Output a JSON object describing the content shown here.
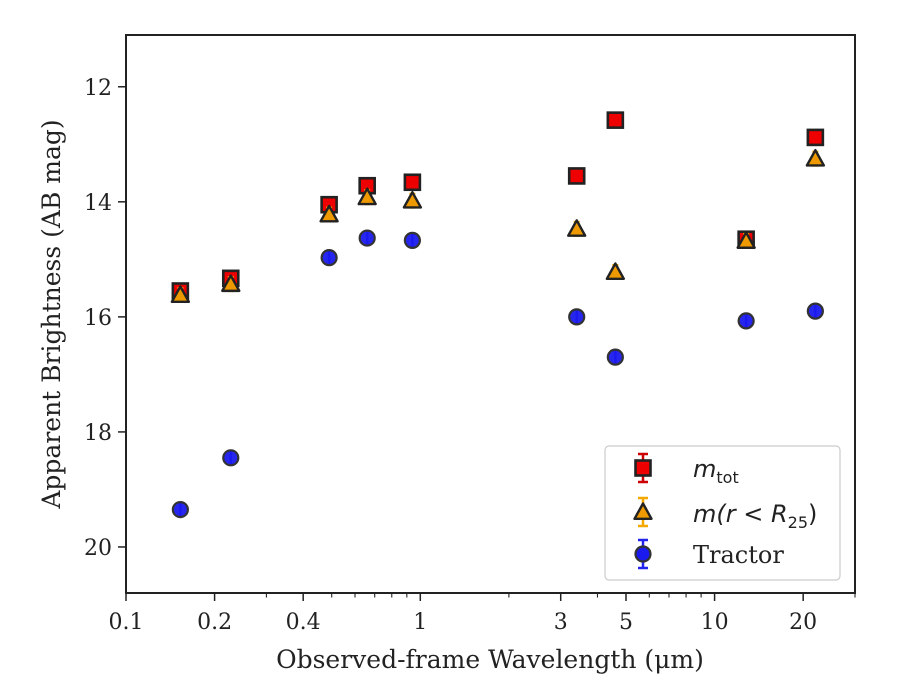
{
  "chart_data": {
    "type": "scatter",
    "xlabel": "Observed-frame Wavelength (μm)",
    "ylabel": "Apparent Brightness (AB mag)",
    "xscale": "log",
    "xlim": [
      0.1,
      30
    ],
    "ylim": [
      20.8,
      11.1
    ],
    "y_inverted": true,
    "xticks": [
      {
        "value": 0.1,
        "label": "0.1"
      },
      {
        "value": 0.2,
        "label": "0.2"
      },
      {
        "value": 0.4,
        "label": "0.4"
      },
      {
        "value": 1,
        "label": "1"
      },
      {
        "value": 3,
        "label": "3"
      },
      {
        "value": 5,
        "label": "5"
      },
      {
        "value": 10,
        "label": "10"
      },
      {
        "value": 20,
        "label": "20"
      }
    ],
    "yticks": [
      {
        "value": 12,
        "label": "12"
      },
      {
        "value": 14,
        "label": "14"
      },
      {
        "value": 16,
        "label": "16"
      },
      {
        "value": 18,
        "label": "18"
      },
      {
        "value": 20,
        "label": "20"
      }
    ],
    "grid": false,
    "legend_position": "lower-right",
    "legend": {
      "mtot_label": "m",
      "mtot_sub": "tot",
      "mr_label": "m(r < R",
      "mr_sub": "25",
      "mr_close": ")",
      "tractor_label": "Tractor"
    },
    "series": [
      {
        "name": "m_tot",
        "marker": "square",
        "color": "#ee0000",
        "errcolor": "#cc0000",
        "edge": "#222222",
        "points": [
          {
            "x": 0.153,
            "y": 15.55
          },
          {
            "x": 0.227,
            "y": 15.33
          },
          {
            "x": 0.49,
            "y": 14.05
          },
          {
            "x": 0.66,
            "y": 13.72
          },
          {
            "x": 0.94,
            "y": 13.66
          },
          {
            "x": 3.4,
            "y": 13.55
          },
          {
            "x": 4.6,
            "y": 12.58
          },
          {
            "x": 12.8,
            "y": 14.65
          },
          {
            "x": 22.0,
            "y": 12.88
          }
        ]
      },
      {
        "name": "m(r < R25)",
        "marker": "triangle",
        "color": "#ee9900",
        "errcolor": "#f5a800",
        "edge": "#222222",
        "points": [
          {
            "x": 0.153,
            "y": 15.62
          },
          {
            "x": 0.227,
            "y": 15.43
          },
          {
            "x": 0.49,
            "y": 14.22
          },
          {
            "x": 0.66,
            "y": 13.92
          },
          {
            "x": 0.94,
            "y": 13.98
          },
          {
            "x": 3.4,
            "y": 14.47
          },
          {
            "x": 4.6,
            "y": 15.22
          },
          {
            "x": 12.8,
            "y": 14.68
          },
          {
            "x": 22.0,
            "y": 13.25
          }
        ]
      },
      {
        "name": "Tractor",
        "marker": "circle",
        "color": "#1a1aee",
        "errcolor": "#2222ee",
        "edge": "#333333",
        "points": [
          {
            "x": 0.153,
            "y": 19.35
          },
          {
            "x": 0.227,
            "y": 18.45
          },
          {
            "x": 0.49,
            "y": 14.97
          },
          {
            "x": 0.66,
            "y": 14.63
          },
          {
            "x": 0.94,
            "y": 14.67
          },
          {
            "x": 3.4,
            "y": 16.0
          },
          {
            "x": 4.6,
            "y": 16.7
          },
          {
            "x": 12.8,
            "y": 16.07
          },
          {
            "x": 22.0,
            "y": 15.9
          }
        ]
      }
    ]
  }
}
